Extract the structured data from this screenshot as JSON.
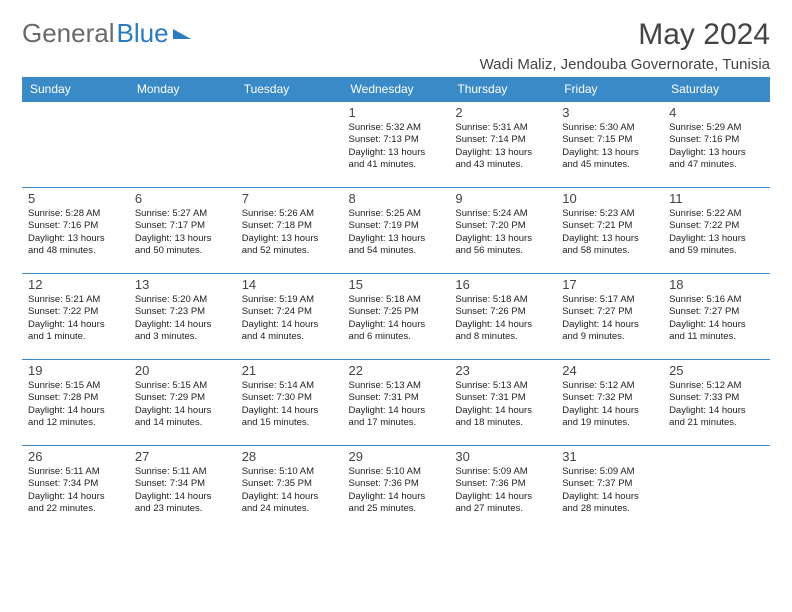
{
  "logo": {
    "text_gray": "General",
    "text_blue": "Blue"
  },
  "header": {
    "month_title": "May 2024",
    "location": "Wadi Maliz, Jendouba Governorate, Tunisia"
  },
  "colors": {
    "header_bg": "#3a8ac7",
    "header_text": "#ffffff",
    "border": "#3a8ac7",
    "logo_gray": "#6a6a6a",
    "logo_blue": "#2b7bbf"
  },
  "day_headers": [
    "Sunday",
    "Monday",
    "Tuesday",
    "Wednesday",
    "Thursday",
    "Friday",
    "Saturday"
  ],
  "weeks": [
    [
      null,
      null,
      null,
      {
        "n": "1",
        "sr": "5:32 AM",
        "ss": "7:13 PM",
        "dl": "13 hours and 41 minutes."
      },
      {
        "n": "2",
        "sr": "5:31 AM",
        "ss": "7:14 PM",
        "dl": "13 hours and 43 minutes."
      },
      {
        "n": "3",
        "sr": "5:30 AM",
        "ss": "7:15 PM",
        "dl": "13 hours and 45 minutes."
      },
      {
        "n": "4",
        "sr": "5:29 AM",
        "ss": "7:16 PM",
        "dl": "13 hours and 47 minutes."
      }
    ],
    [
      {
        "n": "5",
        "sr": "5:28 AM",
        "ss": "7:16 PM",
        "dl": "13 hours and 48 minutes."
      },
      {
        "n": "6",
        "sr": "5:27 AM",
        "ss": "7:17 PM",
        "dl": "13 hours and 50 minutes."
      },
      {
        "n": "7",
        "sr": "5:26 AM",
        "ss": "7:18 PM",
        "dl": "13 hours and 52 minutes."
      },
      {
        "n": "8",
        "sr": "5:25 AM",
        "ss": "7:19 PM",
        "dl": "13 hours and 54 minutes."
      },
      {
        "n": "9",
        "sr": "5:24 AM",
        "ss": "7:20 PM",
        "dl": "13 hours and 56 minutes."
      },
      {
        "n": "10",
        "sr": "5:23 AM",
        "ss": "7:21 PM",
        "dl": "13 hours and 58 minutes."
      },
      {
        "n": "11",
        "sr": "5:22 AM",
        "ss": "7:22 PM",
        "dl": "13 hours and 59 minutes."
      }
    ],
    [
      {
        "n": "12",
        "sr": "5:21 AM",
        "ss": "7:22 PM",
        "dl": "14 hours and 1 minute."
      },
      {
        "n": "13",
        "sr": "5:20 AM",
        "ss": "7:23 PM",
        "dl": "14 hours and 3 minutes."
      },
      {
        "n": "14",
        "sr": "5:19 AM",
        "ss": "7:24 PM",
        "dl": "14 hours and 4 minutes."
      },
      {
        "n": "15",
        "sr": "5:18 AM",
        "ss": "7:25 PM",
        "dl": "14 hours and 6 minutes."
      },
      {
        "n": "16",
        "sr": "5:18 AM",
        "ss": "7:26 PM",
        "dl": "14 hours and 8 minutes."
      },
      {
        "n": "17",
        "sr": "5:17 AM",
        "ss": "7:27 PM",
        "dl": "14 hours and 9 minutes."
      },
      {
        "n": "18",
        "sr": "5:16 AM",
        "ss": "7:27 PM",
        "dl": "14 hours and 11 minutes."
      }
    ],
    [
      {
        "n": "19",
        "sr": "5:15 AM",
        "ss": "7:28 PM",
        "dl": "14 hours and 12 minutes."
      },
      {
        "n": "20",
        "sr": "5:15 AM",
        "ss": "7:29 PM",
        "dl": "14 hours and 14 minutes."
      },
      {
        "n": "21",
        "sr": "5:14 AM",
        "ss": "7:30 PM",
        "dl": "14 hours and 15 minutes."
      },
      {
        "n": "22",
        "sr": "5:13 AM",
        "ss": "7:31 PM",
        "dl": "14 hours and 17 minutes."
      },
      {
        "n": "23",
        "sr": "5:13 AM",
        "ss": "7:31 PM",
        "dl": "14 hours and 18 minutes."
      },
      {
        "n": "24",
        "sr": "5:12 AM",
        "ss": "7:32 PM",
        "dl": "14 hours and 19 minutes."
      },
      {
        "n": "25",
        "sr": "5:12 AM",
        "ss": "7:33 PM",
        "dl": "14 hours and 21 minutes."
      }
    ],
    [
      {
        "n": "26",
        "sr": "5:11 AM",
        "ss": "7:34 PM",
        "dl": "14 hours and 22 minutes."
      },
      {
        "n": "27",
        "sr": "5:11 AM",
        "ss": "7:34 PM",
        "dl": "14 hours and 23 minutes."
      },
      {
        "n": "28",
        "sr": "5:10 AM",
        "ss": "7:35 PM",
        "dl": "14 hours and 24 minutes."
      },
      {
        "n": "29",
        "sr": "5:10 AM",
        "ss": "7:36 PM",
        "dl": "14 hours and 25 minutes."
      },
      {
        "n": "30",
        "sr": "5:09 AM",
        "ss": "7:36 PM",
        "dl": "14 hours and 27 minutes."
      },
      {
        "n": "31",
        "sr": "5:09 AM",
        "ss": "7:37 PM",
        "dl": "14 hours and 28 minutes."
      },
      null
    ]
  ],
  "labels": {
    "sunrise": "Sunrise:",
    "sunset": "Sunset:",
    "daylight": "Daylight:"
  }
}
